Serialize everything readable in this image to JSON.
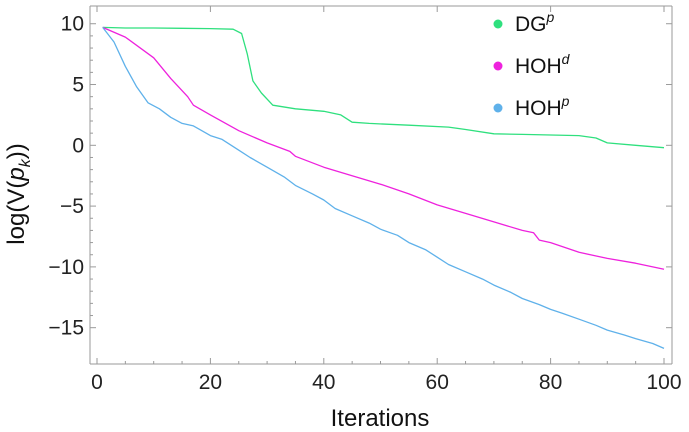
{
  "chart_data": {
    "type": "line",
    "xlabel": "Iterations",
    "ylabel": {
      "prefix": "log(V(",
      "var": "p",
      "sub": "k",
      "suffix": "))"
    },
    "xlim": [
      0,
      100
    ],
    "ylim": [
      -17,
      10.8
    ],
    "x_ticks": [
      0,
      20,
      40,
      60,
      80,
      100
    ],
    "y_ticks": [
      10,
      5,
      0,
      -5,
      -10,
      -15
    ],
    "x_tick_labels": [
      "0",
      "20",
      "40",
      "60",
      "80",
      "100"
    ],
    "y_tick_labels": [
      "10",
      "5",
      "0",
      "−5",
      "−10",
      "−15"
    ],
    "grid": false,
    "legend_position": "top-right",
    "series": [
      {
        "name": "DG",
        "sup": "p",
        "sup_italic": true,
        "color": "#2fe07e",
        "points": [
          [
            1,
            9.7
          ],
          [
            5,
            9.65
          ],
          [
            10,
            9.65
          ],
          [
            15,
            9.62
          ],
          [
            20,
            9.6
          ],
          [
            24,
            9.55
          ],
          [
            25.5,
            9.2
          ],
          [
            26.5,
            7.5
          ],
          [
            27.5,
            5.3
          ],
          [
            29,
            4.3
          ],
          [
            31,
            3.3
          ],
          [
            35,
            3.0
          ],
          [
            40,
            2.8
          ],
          [
            43,
            2.5
          ],
          [
            45,
            1.9
          ],
          [
            48,
            1.8
          ],
          [
            55,
            1.65
          ],
          [
            62,
            1.5
          ],
          [
            65,
            1.3
          ],
          [
            70,
            0.95
          ],
          [
            75,
            0.9
          ],
          [
            80,
            0.85
          ],
          [
            85,
            0.8
          ],
          [
            88,
            0.6
          ],
          [
            90,
            0.2
          ],
          [
            95,
            0.0
          ],
          [
            100,
            -0.2
          ]
        ]
      },
      {
        "name": "HOH",
        "sup": "d",
        "sup_italic": true,
        "color": "#ee22dd",
        "points": [
          [
            1,
            9.7
          ],
          [
            5,
            8.9
          ],
          [
            10,
            7.2
          ],
          [
            13,
            5.5
          ],
          [
            16,
            4.0
          ],
          [
            17,
            3.3
          ],
          [
            20,
            2.5
          ],
          [
            25,
            1.2
          ],
          [
            30,
            0.2
          ],
          [
            34,
            -0.5
          ],
          [
            35,
            -0.9
          ],
          [
            40,
            -1.8
          ],
          [
            45,
            -2.5
          ],
          [
            50,
            -3.2
          ],
          [
            55,
            -4.0
          ],
          [
            60,
            -4.9
          ],
          [
            65,
            -5.6
          ],
          [
            70,
            -6.3
          ],
          [
            75,
            -7.0
          ],
          [
            77,
            -7.2
          ],
          [
            78,
            -7.8
          ],
          [
            80,
            -8.0
          ],
          [
            85,
            -8.8
          ],
          [
            90,
            -9.3
          ],
          [
            95,
            -9.7
          ],
          [
            100,
            -10.2
          ]
        ]
      },
      {
        "name": "HOH",
        "sup": "p",
        "sup_italic": true,
        "color": "#5fb1ea",
        "points": [
          [
            1,
            9.7
          ],
          [
            3,
            8.5
          ],
          [
            5,
            6.5
          ],
          [
            7,
            4.8
          ],
          [
            9,
            3.5
          ],
          [
            11,
            3.0
          ],
          [
            13,
            2.3
          ],
          [
            15,
            1.8
          ],
          [
            17,
            1.6
          ],
          [
            20,
            0.8
          ],
          [
            22,
            0.5
          ],
          [
            25,
            -0.4
          ],
          [
            27,
            -1.0
          ],
          [
            30,
            -1.8
          ],
          [
            33,
            -2.6
          ],
          [
            35,
            -3.3
          ],
          [
            38,
            -4.0
          ],
          [
            40,
            -4.5
          ],
          [
            42,
            -5.2
          ],
          [
            45,
            -5.8
          ],
          [
            48,
            -6.4
          ],
          [
            50,
            -6.9
          ],
          [
            53,
            -7.4
          ],
          [
            55,
            -8.0
          ],
          [
            58,
            -8.6
          ],
          [
            60,
            -9.2
          ],
          [
            62,
            -9.8
          ],
          [
            65,
            -10.4
          ],
          [
            68,
            -11.0
          ],
          [
            70,
            -11.5
          ],
          [
            73,
            -12.1
          ],
          [
            75,
            -12.6
          ],
          [
            78,
            -13.1
          ],
          [
            80,
            -13.5
          ],
          [
            82,
            -13.8
          ],
          [
            85,
            -14.3
          ],
          [
            88,
            -14.8
          ],
          [
            90,
            -15.2
          ],
          [
            93,
            -15.6
          ],
          [
            95,
            -15.9
          ],
          [
            98,
            -16.3
          ],
          [
            100,
            -16.7
          ]
        ]
      }
    ]
  }
}
